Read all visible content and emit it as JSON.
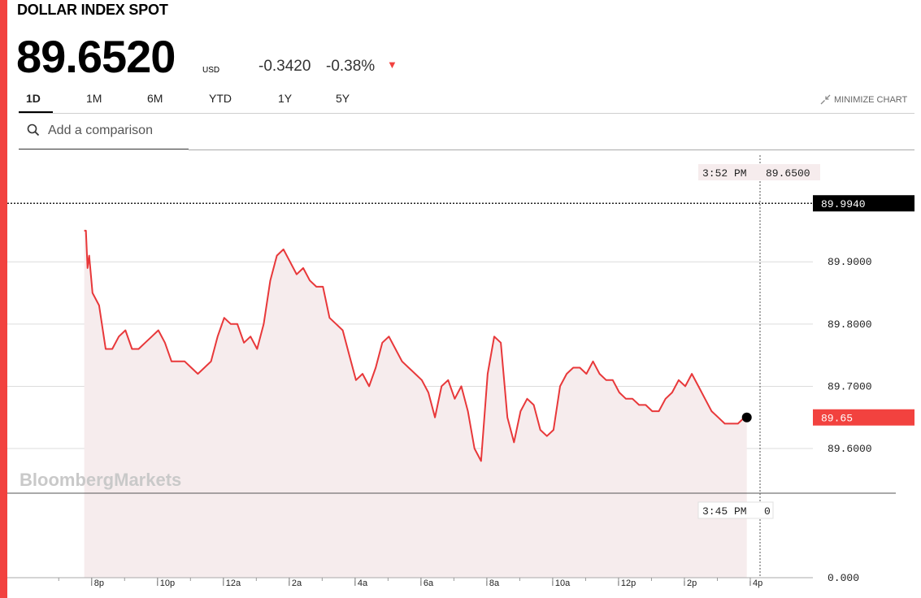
{
  "header": {
    "title": "DOLLAR INDEX SPOT",
    "price": "89.6520",
    "currency": "USD",
    "change": "-0.3420",
    "change_pct": "-0.38%"
  },
  "tabs": [
    {
      "label": "1D",
      "active": true
    },
    {
      "label": "1M",
      "active": false
    },
    {
      "label": "6M",
      "active": false
    },
    {
      "label": "YTD",
      "active": false
    },
    {
      "label": "1Y",
      "active": false
    },
    {
      "label": "5Y",
      "active": false
    }
  ],
  "minimize_label": "MINIMIZE CHART",
  "search": {
    "placeholder": "Add a comparison"
  },
  "watermark": "BloombergMarkets",
  "colors": {
    "accent": "#f2423f",
    "line": "#e8383a",
    "fill": "#f6eced"
  },
  "chart_data": {
    "type": "line",
    "series": [
      {
        "x": [
          19.75,
          19.8,
          19.85,
          19.9,
          20.0,
          20.2,
          20.4,
          20.6,
          20.8,
          21.0,
          21.2,
          21.4,
          21.6,
          21.8,
          22.0,
          22.2,
          22.4,
          22.6,
          22.8,
          23.0,
          23.2,
          23.4,
          23.6,
          23.8,
          24.0,
          24.2,
          24.4,
          24.6,
          24.8,
          25.0,
          25.2,
          25.4,
          25.6,
          25.8,
          26.0,
          26.2,
          26.4,
          26.6,
          26.8,
          27.0,
          27.2,
          27.4,
          27.6,
          27.8,
          28.0,
          28.2,
          28.4,
          28.6,
          28.8,
          29.0,
          29.2,
          29.4,
          29.6,
          29.8,
          30.0,
          30.2,
          30.4,
          30.6,
          30.8,
          31.0,
          31.2,
          31.4,
          31.6,
          31.8,
          32.0,
          32.2,
          32.4,
          32.6,
          32.8,
          33.0,
          33.2,
          33.4,
          33.6,
          33.8,
          34.0,
          34.2,
          34.4,
          34.6,
          34.8,
          35.0,
          35.2,
          35.4,
          35.6,
          35.8,
          36.0,
          36.2,
          36.4,
          36.6,
          36.8,
          37.0,
          37.2,
          37.4,
          37.6,
          37.8,
          38.0,
          38.2,
          38.4,
          38.6,
          38.8,
          39.0,
          39.2,
          39.4,
          39.6,
          39.8,
          39.87
        ],
        "y": [
          89.95,
          89.95,
          89.89,
          89.91,
          89.85,
          89.83,
          89.76,
          89.76,
          89.78,
          89.79,
          89.76,
          89.76,
          89.77,
          89.78,
          89.79,
          89.77,
          89.74,
          89.74,
          89.74,
          89.73,
          89.72,
          89.73,
          89.74,
          89.78,
          89.81,
          89.8,
          89.8,
          89.77,
          89.78,
          89.76,
          89.8,
          89.87,
          89.91,
          89.92,
          89.9,
          89.88,
          89.89,
          89.87,
          89.86,
          89.86,
          89.81,
          89.8,
          89.79,
          89.75,
          89.71,
          89.72,
          89.7,
          89.73,
          89.77,
          89.78,
          89.76,
          89.74,
          89.73,
          89.72,
          89.71,
          89.69,
          89.65,
          89.7,
          89.71,
          89.68,
          89.7,
          89.66,
          89.6,
          89.58,
          89.72,
          89.78,
          89.77,
          89.65,
          89.61,
          89.66,
          89.68,
          89.67,
          89.63,
          89.62,
          89.63,
          89.7,
          89.72,
          89.73,
          89.73,
          89.72,
          89.74,
          89.72,
          89.71,
          89.71,
          89.69,
          89.68,
          89.68,
          89.67,
          89.67,
          89.66,
          89.66,
          89.68,
          89.69,
          89.71,
          89.7,
          89.72,
          89.7,
          89.68,
          89.66,
          89.65,
          89.64,
          89.64,
          89.64,
          89.65,
          89.65
        ]
      }
    ],
    "y_ticks": [
      "89.9000",
      "89.8000",
      "89.7000",
      "89.6000"
    ],
    "y_tick_values": [
      89.9,
      89.8,
      89.7,
      89.6
    ],
    "x_ticks": [
      "8p",
      "10p",
      "12a",
      "2a",
      "4a",
      "6a",
      "8a",
      "10a",
      "12p",
      "2p",
      "4p"
    ],
    "x_tick_hours": [
      20,
      22,
      24,
      26,
      28,
      30,
      32,
      34,
      36,
      38,
      40
    ],
    "ylim": [
      89.54,
      90.04
    ],
    "xlim": [
      18.5,
      42.0
    ],
    "reference_level": {
      "value": 89.994,
      "label": "89.9940"
    },
    "last_value": {
      "value": 89.65,
      "label": "89.65"
    },
    "volume_axis_label": "0.000",
    "crosshair": {
      "time_label": "3:52 PM",
      "value_label": "89.6500",
      "volume_time_label": "3:45 PM",
      "volume_value_label": "0"
    }
  }
}
